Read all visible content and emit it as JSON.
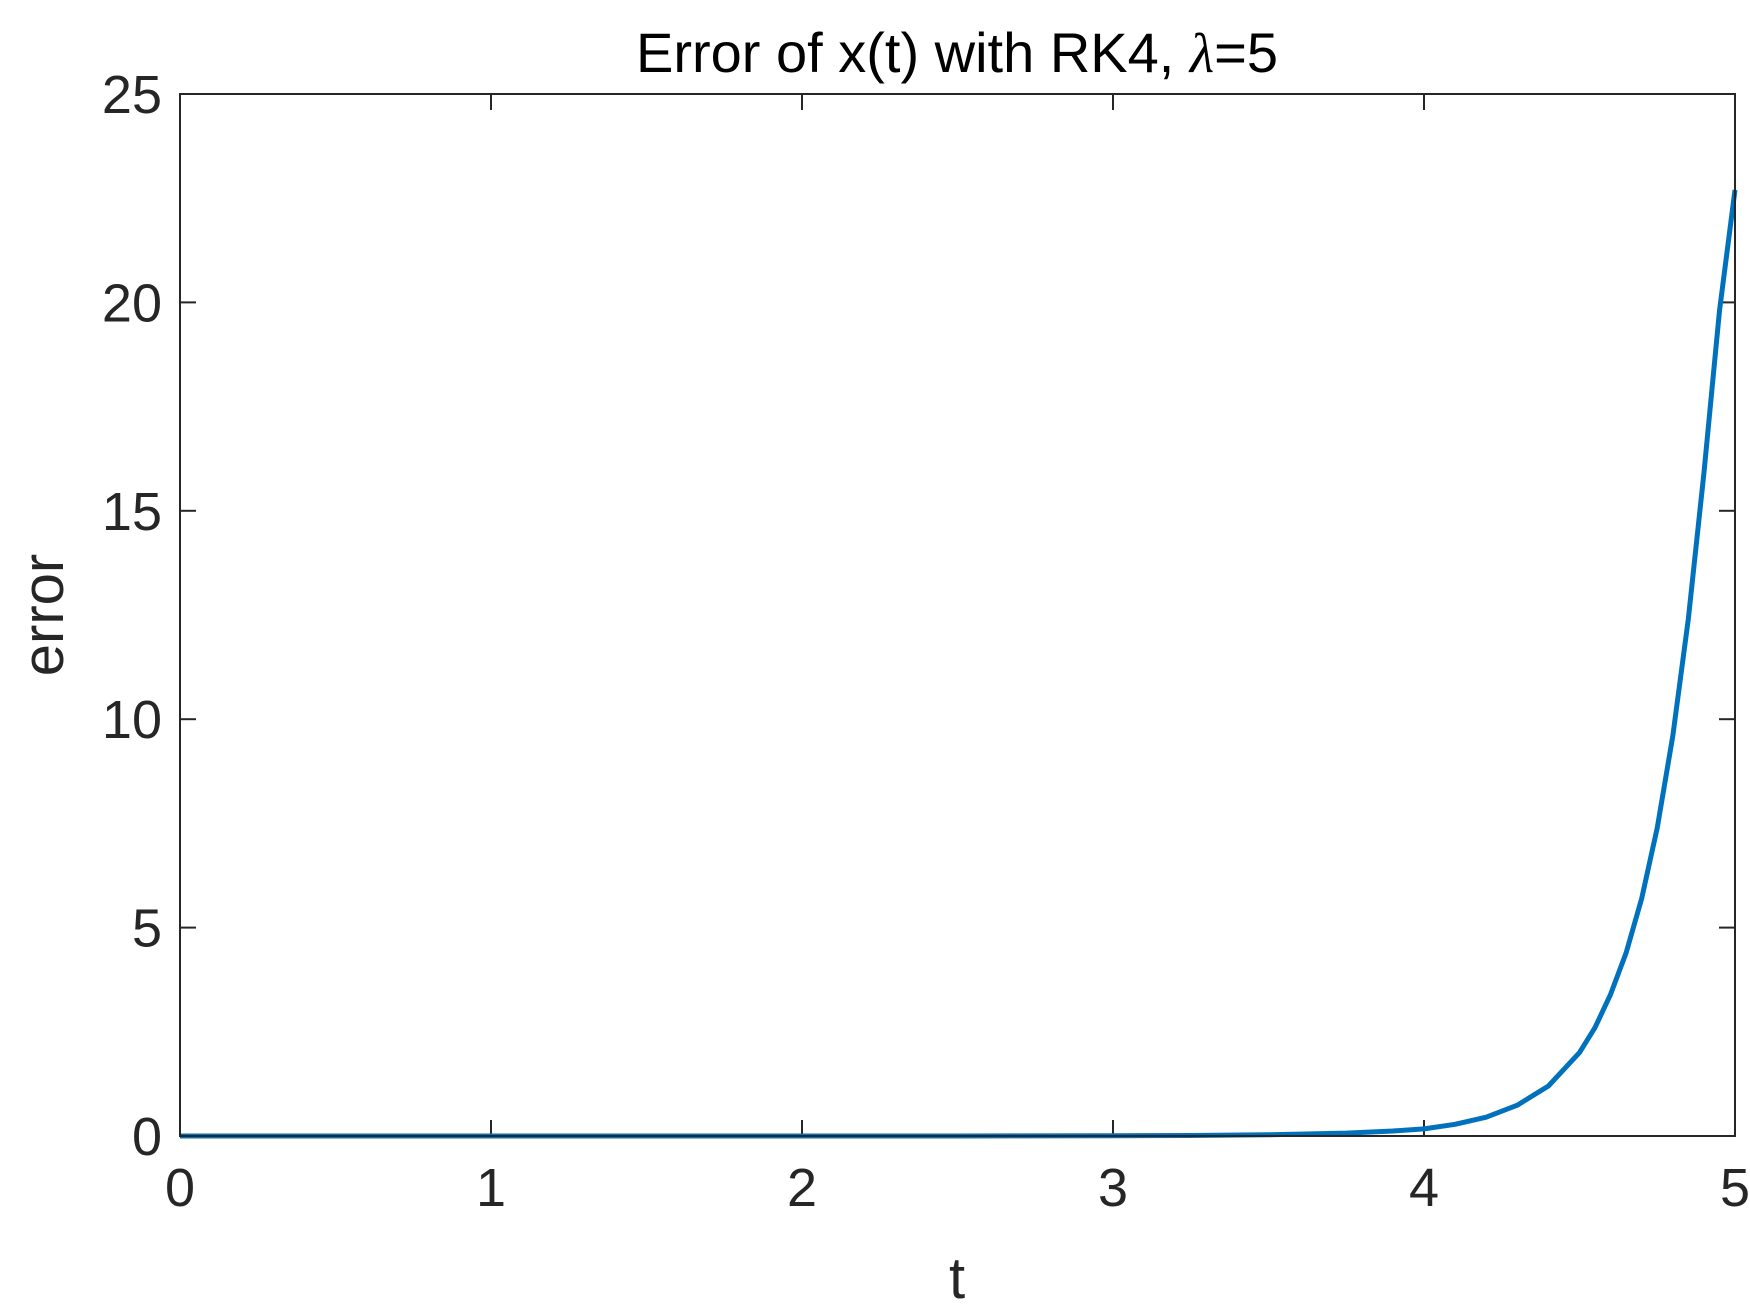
{
  "chart_data": {
    "type": "line",
    "title": "Error of x(t) with RK4, ",
    "title_symbol": "λ",
    "title_suffix": "=5",
    "xlabel": "t",
    "ylabel": "error",
    "xlim": [
      0,
      5
    ],
    "ylim": [
      0,
      25
    ],
    "xticks": [
      "0",
      "1",
      "2",
      "3",
      "4",
      "5"
    ],
    "yticks": [
      "0",
      "5",
      "10",
      "15",
      "20",
      "25"
    ],
    "grid": false,
    "series": [
      {
        "color": "#0072BD",
        "x": [
          0,
          0.5,
          1,
          1.5,
          2,
          2.5,
          3,
          3.25,
          3.5,
          3.75,
          3.9,
          4,
          4.1,
          4.2,
          4.3,
          4.4,
          4.5,
          4.55,
          4.6,
          4.65,
          4.7,
          4.75,
          4.8,
          4.85,
          4.9,
          4.95,
          5
        ],
        "y": [
          0,
          0,
          0,
          0,
          0,
          0,
          0.005,
          0.012,
          0.028,
          0.07,
          0.12,
          0.17,
          0.28,
          0.45,
          0.74,
          1.2,
          2.0,
          2.6,
          3.4,
          4.4,
          5.7,
          7.4,
          9.6,
          12.4,
          15.9,
          19.8,
          22.7
        ]
      }
    ],
    "colors": {
      "axes": "#262626",
      "frame": "#262626",
      "background": "#ffffff"
    }
  }
}
